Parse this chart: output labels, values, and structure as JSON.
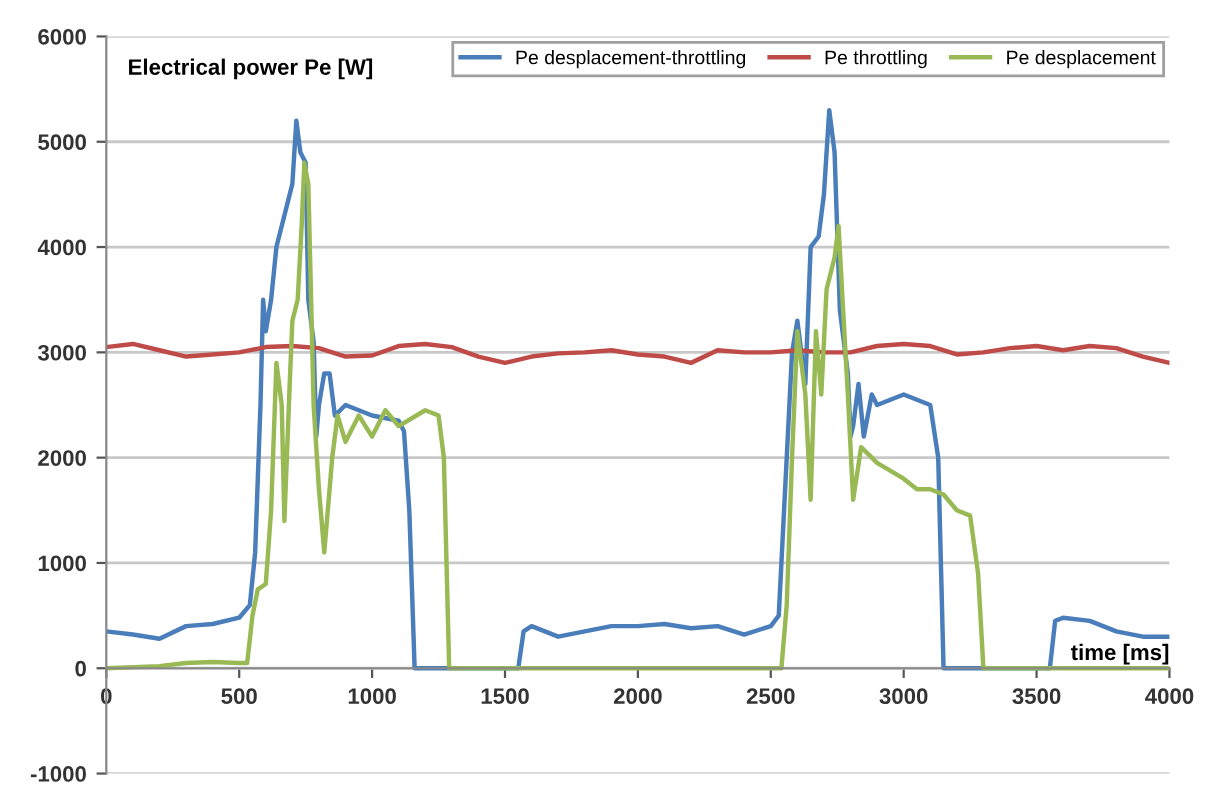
{
  "chart_data": {
    "type": "line",
    "ylabel": "Electrical power Pe [W]",
    "xlabel": "time [ms]",
    "xlim": [
      0,
      4000
    ],
    "xticks": [
      0,
      500,
      1000,
      1500,
      2000,
      2500,
      3000,
      3500,
      4000
    ],
    "ylim": [
      -1000,
      6000
    ],
    "yticks": [
      -1000,
      0,
      1000,
      2000,
      3000,
      4000,
      5000,
      6000
    ],
    "grid": "y",
    "legend": "top right",
    "marker": "none",
    "line_style": "solid",
    "series": [
      {
        "name": "Pe desplacement-throttling",
        "color": "#4a7ebb",
        "x": [
          0,
          100,
          200,
          300,
          400,
          500,
          540,
          560,
          580,
          590,
          600,
          620,
          640,
          670,
          700,
          715,
          730,
          750,
          760,
          780,
          790,
          800,
          820,
          840,
          860,
          900,
          1000,
          1100,
          1120,
          1140,
          1160,
          1550,
          1570,
          1600,
          1700,
          1800,
          1900,
          2000,
          2100,
          2200,
          2300,
          2400,
          2500,
          2530,
          2550,
          2580,
          2600,
          2630,
          2650,
          2680,
          2700,
          2720,
          2740,
          2760,
          2790,
          2800,
          2810,
          2830,
          2850,
          2880,
          2900,
          3000,
          3100,
          3130,
          3150,
          3550,
          3570,
          3600,
          3700,
          3800,
          3900,
          4000
        ],
        "values": [
          350,
          320,
          280,
          400,
          420,
          480,
          600,
          1100,
          2500,
          3500,
          3200,
          3500,
          4000,
          4300,
          4600,
          5200,
          4900,
          4800,
          3500,
          3100,
          2200,
          2500,
          2800,
          2800,
          2400,
          2500,
          2400,
          2350,
          2250,
          1500,
          0,
          0,
          350,
          400,
          300,
          350,
          400,
          400,
          420,
          380,
          400,
          320,
          400,
          500,
          1500,
          3000,
          3300,
          2700,
          4000,
          4100,
          4500,
          5300,
          4900,
          3400,
          2800,
          2200,
          2300,
          2700,
          2200,
          2600,
          2500,
          2600,
          2500,
          2000,
          0,
          0,
          450,
          480,
          450,
          350,
          300,
          300
        ]
      },
      {
        "name": "Pe throttling",
        "color": "#be4b48",
        "x": [
          0,
          100,
          200,
          300,
          400,
          500,
          600,
          700,
          800,
          900,
          1000,
          1100,
          1200,
          1300,
          1400,
          1500,
          1600,
          1700,
          1800,
          1900,
          2000,
          2100,
          2200,
          2300,
          2400,
          2500,
          2600,
          2700,
          2800,
          2900,
          3000,
          3100,
          3200,
          3300,
          3400,
          3500,
          3600,
          3700,
          3800,
          3900,
          4000
        ],
        "values": [
          3050,
          3080,
          3020,
          2960,
          2980,
          3000,
          3050,
          3060,
          3040,
          2960,
          2970,
          3060,
          3080,
          3050,
          2960,
          2900,
          2960,
          2990,
          3000,
          3020,
          2980,
          2960,
          2900,
          3020,
          3000,
          3000,
          3020,
          3000,
          3000,
          3060,
          3080,
          3060,
          2980,
          3000,
          3040,
          3060,
          3020,
          3060,
          3040,
          2960,
          2900
        ]
      },
      {
        "name": "Pe desplacement",
        "color": "#98b954",
        "x": [
          0,
          200,
          300,
          400,
          500,
          530,
          550,
          570,
          600,
          620,
          640,
          660,
          670,
          690,
          700,
          720,
          735,
          745,
          760,
          780,
          800,
          820,
          850,
          870,
          900,
          950,
          1000,
          1050,
          1100,
          1200,
          1250,
          1270,
          1290,
          2540,
          2560,
          2580,
          2600,
          2630,
          2650,
          2670,
          2690,
          2710,
          2740,
          2755,
          2770,
          2790,
          2810,
          2840,
          2900,
          3000,
          3050,
          3100,
          3150,
          3200,
          3250,
          3280,
          3300,
          4000
        ],
        "values": [
          0,
          20,
          50,
          60,
          50,
          50,
          500,
          750,
          800,
          1500,
          2900,
          2500,
          1400,
          2700,
          3300,
          3500,
          4200,
          4800,
          4600,
          2500,
          1700,
          1100,
          2000,
          2400,
          2150,
          2400,
          2200,
          2450,
          2300,
          2450,
          2400,
          2000,
          0,
          0,
          600,
          2000,
          3200,
          2600,
          1600,
          3200,
          2600,
          3600,
          3900,
          4200,
          3500,
          2600,
          1600,
          2100,
          1950,
          1800,
          1700,
          1700,
          1650,
          1500,
          1450,
          900,
          0,
          0
        ]
      }
    ]
  }
}
